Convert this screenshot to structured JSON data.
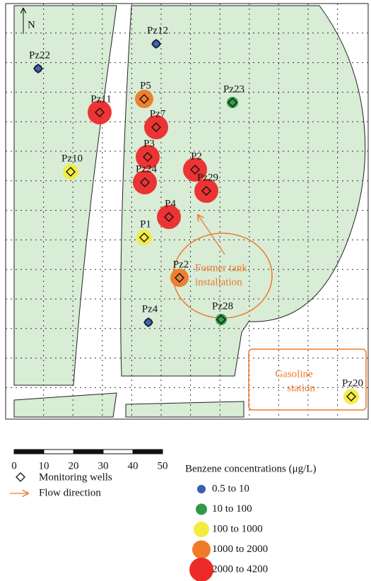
{
  "map": {
    "north": "N",
    "wells": [
      {
        "name": "Pz12",
        "color": "#3a5fb0"
      },
      {
        "name": "Pz22",
        "color": "#3a5fb0"
      },
      {
        "name": "P5",
        "color": "#f07a28"
      },
      {
        "name": "Pz23",
        "color": "#2e9a48"
      },
      {
        "name": "Pz11",
        "color": "#ec2a2a"
      },
      {
        "name": "Pz7",
        "color": "#ec2a2a"
      },
      {
        "name": "P3",
        "color": "#ec2a2a"
      },
      {
        "name": "P2",
        "color": "#ec2a2a"
      },
      {
        "name": "Pz10",
        "color": "#f4ec3a"
      },
      {
        "name": "Pz24",
        "color": "#ec2a2a"
      },
      {
        "name": "Pz29",
        "color": "#ec2a2a"
      },
      {
        "name": "P4",
        "color": "#ec2a2a"
      },
      {
        "name": "P1",
        "color": "#f4ec3a"
      },
      {
        "name": "Pz2",
        "color": "#f07a28"
      },
      {
        "name": "Pz4",
        "color": "#3a5fb0"
      },
      {
        "name": "Pz28",
        "color": "#2e9a48"
      },
      {
        "name": "Pz20",
        "color": "#f4ec3a"
      }
    ],
    "annotations": {
      "tank": [
        "Former tank",
        "installation"
      ],
      "station": [
        "Gasoline",
        "station"
      ]
    },
    "scale_ticks": [
      0,
      10,
      20,
      30,
      40,
      50
    ],
    "legend": {
      "wells": "Monitoring wells",
      "flow": "Flow direction",
      "title": "Benzene concentrations (μg/L)",
      "classes": [
        {
          "label": "0.5 to 10",
          "color": "#3a5fb0"
        },
        {
          "label": "10 to 100",
          "color": "#2e9a48"
        },
        {
          "label": "100 to 1000",
          "color": "#f4ec3a"
        },
        {
          "label": "1000 to 2000",
          "color": "#f07a28"
        },
        {
          "label": "2000 to 4200",
          "color": "#ec2a2a"
        }
      ]
    }
  }
}
